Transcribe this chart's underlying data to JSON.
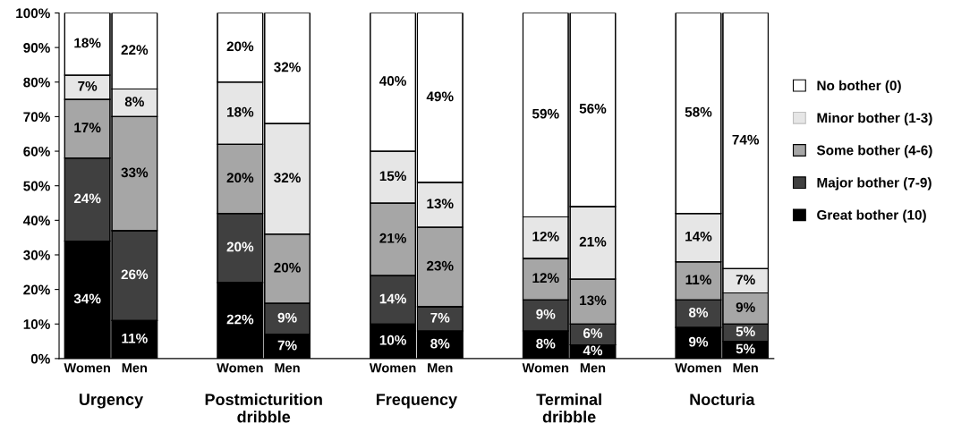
{
  "chart_data": {
    "type": "bar",
    "stacked": true,
    "data_labels": true,
    "legend": "right",
    "grid": false,
    "categories": [
      "Women",
      "Men",
      "Women",
      "Men",
      "Women",
      "Men",
      "Women",
      "Men",
      "Women",
      "Men"
    ],
    "annotations": [
      "Urgency",
      "Postmicturition dribble",
      "Frequency",
      "Terminal dribble",
      "Nocturia"
    ],
    "ylim": [
      0,
      100
    ],
    "yticks": [
      {
        "value": 0,
        "label": "0%"
      },
      {
        "value": 10,
        "label": "10%"
      },
      {
        "value": 20,
        "label": "20%"
      },
      {
        "value": 30,
        "label": "30%"
      },
      {
        "value": 40,
        "label": "40%"
      },
      {
        "value": 50,
        "label": "50%"
      },
      {
        "value": 60,
        "label": "60%"
      },
      {
        "value": 70,
        "label": "70%"
      },
      {
        "value": 80,
        "label": "80%"
      },
      {
        "value": 90,
        "label": "90%"
      },
      {
        "value": 100,
        "label": "100%"
      }
    ],
    "series": [
      {
        "name": "Great bother (10)",
        "color": "#000000",
        "values": [
          34,
          11,
          22,
          7,
          10,
          8,
          8,
          4,
          9,
          5
        ],
        "value_labels": [
          "34%",
          "11%",
          "22%",
          "7%",
          "10%",
          "8%",
          "8%",
          "4%",
          "9%",
          "5%"
        ]
      },
      {
        "name": "Major bother (7-9)",
        "color": "#404040",
        "values": [
          24,
          26,
          20,
          9,
          14,
          7,
          9,
          6,
          8,
          5
        ],
        "value_labels": [
          "24%",
          "26%",
          "20%",
          "9%",
          "14%",
          "7%",
          "9%",
          "6%",
          "8%",
          "5%"
        ]
      },
      {
        "name": "Some bother (4-6)",
        "color": "#a6a6a6",
        "values": [
          17,
          33,
          20,
          20,
          21,
          23,
          12,
          13,
          11,
          9
        ],
        "value_labels": [
          "17%",
          "33%",
          "20%",
          "20%",
          "21%",
          "23%",
          "12%",
          "13%",
          "11%",
          "9%"
        ]
      },
      {
        "name": "Minor bother (1-3)",
        "color": "#e6e6e6",
        "values": [
          7,
          8,
          18,
          32,
          15,
          13,
          12,
          21,
          14,
          7
        ],
        "value_labels": [
          "7%",
          "8%",
          "18%",
          "32%",
          "15%",
          "13%",
          "12%",
          "21%",
          "14%",
          "7%"
        ]
      },
      {
        "name": "No bother (0)",
        "color": "#ffffff",
        "values": [
          18,
          22,
          20,
          32,
          40,
          49,
          59,
          56,
          58,
          74
        ],
        "value_labels": [
          "18%",
          "22%",
          "20%",
          "32%",
          "40%",
          "49%",
          "59%",
          "56%",
          "58%",
          "74%"
        ]
      }
    ]
  }
}
